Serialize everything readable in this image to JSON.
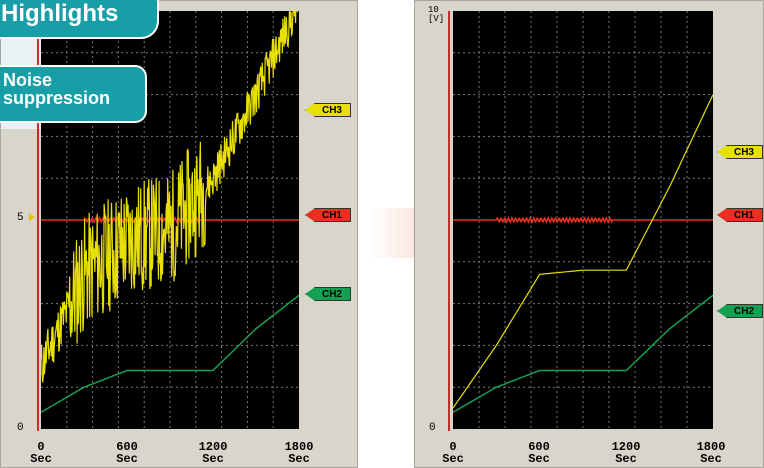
{
  "badges": {
    "highlights": "Highlights",
    "noise_line1": "Noise",
    "noise_line2": "suppression"
  },
  "left_chart": {
    "ytick_labels": [
      "5",
      "0"
    ],
    "xtick_labels": [
      [
        "0",
        "Sec"
      ],
      [
        "600",
        "Sec"
      ],
      [
        "1200",
        "Sec"
      ],
      [
        "1800",
        "Sec"
      ]
    ],
    "channels": [
      {
        "name": "CH3",
        "color": "#e8e000"
      },
      {
        "name": "CH1",
        "color": "#e83020"
      },
      {
        "name": "CH2",
        "color": "#14a050"
      }
    ]
  },
  "right_chart": {
    "ytick_labels": [
      "10",
      "5",
      "0"
    ],
    "unit": "[V]",
    "xtick_labels": [
      [
        "0",
        "Sec"
      ],
      [
        "600",
        "Sec"
      ],
      [
        "1200",
        "Sec"
      ],
      [
        "1800",
        "Sec"
      ]
    ],
    "channels": [
      {
        "name": "CH3",
        "color": "#e8e000"
      },
      {
        "name": "CH1",
        "color": "#e83020"
      },
      {
        "name": "CH2",
        "color": "#14a050"
      }
    ]
  },
  "colors": {
    "plot_bg": "#000000",
    "panel_bg": "#d8d5cb",
    "accent_teal": "#179ea6",
    "grid": "#7a7a7a"
  },
  "chart_data": {
    "type": "line",
    "title": "",
    "xlabel": "Sec",
    "ylabel": "[V]",
    "xlim": [
      0,
      1800
    ],
    "ylim": [
      0,
      10
    ],
    "x_ticks": [
      0,
      600,
      1200,
      1800
    ],
    "y_ticks": [
      0,
      5,
      10
    ],
    "grid": true,
    "series": [
      {
        "name": "CH3",
        "values_x": [
          0,
          300,
          600,
          900,
          1200,
          1500,
          1800
        ],
        "raw_y": [
          1.5,
          3.7,
          4.5,
          4.8,
          6.0,
          8.0,
          10.2
        ],
        "filtered_y": [
          0.5,
          2.0,
          3.7,
          3.8,
          3.8,
          5.8,
          8.0
        ]
      },
      {
        "name": "CH1",
        "values_x": [
          0,
          1800
        ],
        "y": [
          5.0,
          5.0
        ]
      },
      {
        "name": "CH2",
        "values_x": [
          0,
          300,
          600,
          900,
          1200,
          1500,
          1800
        ],
        "y": [
          0.4,
          1.0,
          1.4,
          1.4,
          1.4,
          2.4,
          3.2
        ]
      }
    ]
  }
}
